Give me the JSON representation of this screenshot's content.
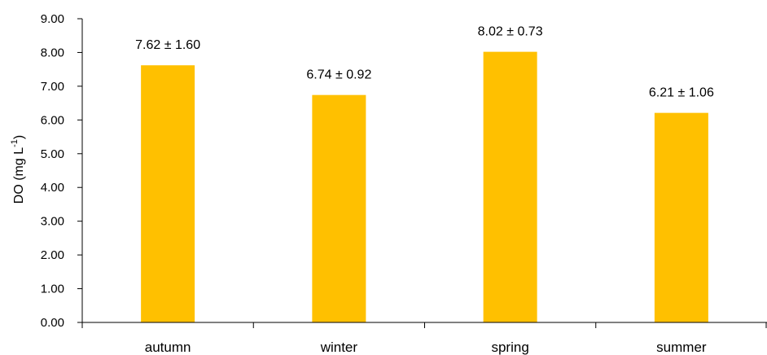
{
  "chart_data": {
    "type": "bar",
    "categories": [
      "autumn",
      "winter",
      "spring",
      "summer"
    ],
    "values": [
      7.62,
      6.74,
      8.02,
      6.21
    ],
    "data_labels": [
      "7.62 ± 1.60",
      "6.74 ± 0.92",
      "8.02 ± 0.73",
      "6.21 ± 1.06"
    ],
    "yticks": [
      "0.00",
      "1.00",
      "2.00",
      "3.00",
      "4.00",
      "5.00",
      "6.00",
      "7.00",
      "8.00",
      "9.00"
    ],
    "ylim": [
      0,
      9
    ],
    "ylabel_main": "DO (mg L",
    "ylabel_sup": "-1",
    "ylabel_close": ")",
    "xlabel": "",
    "title": "",
    "bar_color": "#FFC000",
    "grid": false,
    "legend": "none"
  }
}
